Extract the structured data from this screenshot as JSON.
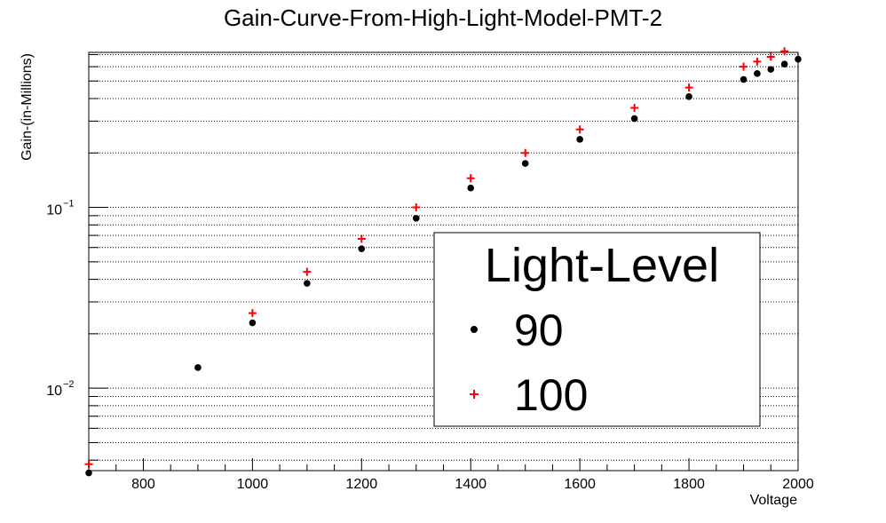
{
  "chart_data": {
    "type": "scatter",
    "title": "Gain-Curve-From-High-Light-Model-PMT-2",
    "xlabel": "Voltage",
    "ylabel": "Gain-(in-Millions)",
    "xlim": [
      700,
      2000
    ],
    "ylim": [
      0.0035,
      0.72
    ],
    "yscale": "log",
    "grid": "horizontal dotted",
    "x_ticks": [
      800,
      1000,
      1200,
      1400,
      1600,
      1800,
      2000
    ],
    "y_tick_labels": [
      {
        "value": 0.1,
        "base": "10",
        "exp": "−1"
      },
      {
        "value": 0.01,
        "base": "10",
        "exp": "−2"
      }
    ],
    "legend": {
      "title": "Light-Level",
      "placement": "center-right",
      "entries": [
        "90",
        "100"
      ]
    },
    "series": [
      {
        "name": "90",
        "marker": "circle",
        "color": "#000000",
        "x": [
          700,
          900,
          1000,
          1100,
          1200,
          1300,
          1400,
          1500,
          1600,
          1700,
          1800,
          1900,
          1925,
          1950,
          1975,
          2000
        ],
        "y": [
          0.0034,
          0.013,
          0.023,
          0.038,
          0.059,
          0.087,
          0.128,
          0.175,
          0.238,
          0.31,
          0.41,
          0.51,
          0.55,
          0.58,
          0.62,
          0.66
        ]
      },
      {
        "name": "100",
        "marker": "plus",
        "color": "#ff0000",
        "x": [
          700,
          1000,
          1100,
          1200,
          1300,
          1400,
          1500,
          1600,
          1700,
          1800,
          1900,
          1925,
          1950,
          1975
        ],
        "y": [
          0.0038,
          0.026,
          0.044,
          0.067,
          0.1,
          0.145,
          0.2,
          0.27,
          0.355,
          0.46,
          0.6,
          0.64,
          0.68,
          0.73
        ]
      }
    ]
  }
}
